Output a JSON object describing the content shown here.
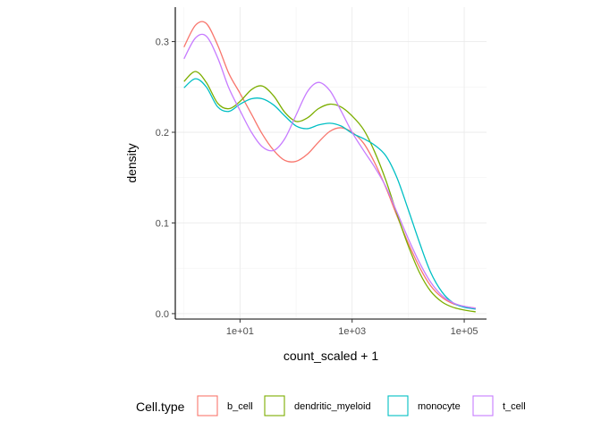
{
  "chart_data": {
    "type": "line",
    "subtype": "density",
    "title": "",
    "xlabel": "count_scaled + 1",
    "ylabel": "density",
    "x_scale": "log10",
    "xlim": [
      0.7,
      250000
    ],
    "ylim": [
      -0.006,
      0.338
    ],
    "x_ticks": [
      10,
      1000,
      100000
    ],
    "x_tick_labels": [
      "1e+01",
      "1e+03",
      "1e+05"
    ],
    "y_ticks": [
      0.0,
      0.1,
      0.2,
      0.3
    ],
    "y_tick_labels": [
      "0.0",
      "0.1",
      "0.2",
      "0.3"
    ],
    "grid": true,
    "legend": {
      "title": "Cell.type",
      "position": "bottom"
    },
    "x": [
      1,
      1.6,
      2.5,
      4,
      6.3,
      10,
      16,
      25,
      40,
      63,
      100,
      160,
      250,
      400,
      630,
      1000,
      1600,
      2500,
      4000,
      6300,
      10000,
      16000,
      25000,
      40000,
      63000,
      100000,
      160000
    ],
    "series": [
      {
        "name": "b_cell",
        "color": "#F8766D",
        "values": [
          0.294,
          0.318,
          0.32,
          0.296,
          0.265,
          0.243,
          0.22,
          0.198,
          0.18,
          0.169,
          0.168,
          0.176,
          0.189,
          0.201,
          0.205,
          0.2,
          0.188,
          0.167,
          0.139,
          0.108,
          0.078,
          0.051,
          0.031,
          0.018,
          0.011,
          0.008,
          0.006
        ]
      },
      {
        "name": "dendritic_myeloid",
        "color": "#7CAE00",
        "values": [
          0.256,
          0.267,
          0.255,
          0.232,
          0.226,
          0.234,
          0.247,
          0.251,
          0.24,
          0.222,
          0.212,
          0.216,
          0.226,
          0.231,
          0.228,
          0.218,
          0.203,
          0.179,
          0.147,
          0.11,
          0.075,
          0.045,
          0.025,
          0.013,
          0.007,
          0.004,
          0.002
        ]
      },
      {
        "name": "monocyte",
        "color": "#00BFC4",
        "values": [
          0.249,
          0.259,
          0.25,
          0.228,
          0.223,
          0.231,
          0.237,
          0.237,
          0.23,
          0.218,
          0.207,
          0.204,
          0.208,
          0.21,
          0.207,
          0.199,
          0.193,
          0.186,
          0.174,
          0.15,
          0.115,
          0.078,
          0.046,
          0.024,
          0.012,
          0.007,
          0.005
        ]
      },
      {
        "name": "t_cell",
        "color": "#C77CFF",
        "values": [
          0.281,
          0.304,
          0.306,
          0.282,
          0.249,
          0.224,
          0.2,
          0.184,
          0.18,
          0.193,
          0.219,
          0.245,
          0.255,
          0.246,
          0.224,
          0.2,
          0.18,
          0.162,
          0.14,
          0.112,
          0.083,
          0.056,
          0.035,
          0.02,
          0.012,
          0.008,
          0.006
        ]
      }
    ]
  }
}
